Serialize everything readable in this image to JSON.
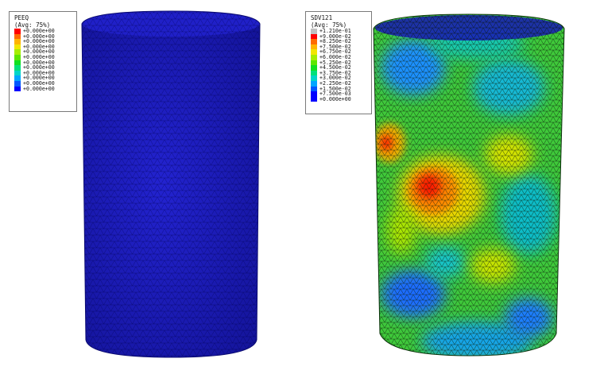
{
  "left_legend": {
    "title": "PEEQ",
    "subtitle": "(Avg: 75%)",
    "entries": [
      {
        "label": "+0.000e+00",
        "color": "#ff0000"
      },
      {
        "label": "+0.000e+00",
        "color": "#ff6a00"
      },
      {
        "label": "+0.000e+00",
        "color": "#ffb400"
      },
      {
        "label": "+0.000e+00",
        "color": "#f2e600"
      },
      {
        "label": "+0.000e+00",
        "color": "#a6ee00"
      },
      {
        "label": "+0.000e+00",
        "color": "#5ce600"
      },
      {
        "label": "+0.000e+00",
        "color": "#10e020"
      },
      {
        "label": "+0.000e+00",
        "color": "#00e07a"
      },
      {
        "label": "+0.000e+00",
        "color": "#00d6c8"
      },
      {
        "label": "+0.000e+00",
        "color": "#00a6ff"
      },
      {
        "label": "+0.000e+00",
        "color": "#0058ff"
      },
      {
        "label": "+0.000e+00",
        "color": "#0000ff"
      }
    ]
  },
  "right_legend": {
    "title": "SDV121",
    "subtitle": "(Avg: 75%)",
    "entries": [
      {
        "label": "+1.210e-01",
        "color": "#c0c0c0"
      },
      {
        "label": "+9.000e-02",
        "color": "#ff0000"
      },
      {
        "label": "+8.250e-02",
        "color": "#ff6a00"
      },
      {
        "label": "+7.500e-02",
        "color": "#ffb400"
      },
      {
        "label": "+6.750e-02",
        "color": "#f2e600"
      },
      {
        "label": "+6.000e-02",
        "color": "#a6ee00"
      },
      {
        "label": "+5.250e-02",
        "color": "#5ce600"
      },
      {
        "label": "+4.500e-02",
        "color": "#10e020"
      },
      {
        "label": "+3.750e-02",
        "color": "#00e07a"
      },
      {
        "label": "+3.000e-02",
        "color": "#00d6c8"
      },
      {
        "label": "+2.250e-02",
        "color": "#00a6ff"
      },
      {
        "label": "+1.500e-02",
        "color": "#0058ff"
      },
      {
        "label": "+7.500e-03",
        "color": "#0000ff"
      },
      {
        "label": "+0.000e+00",
        "color": "#0000ff"
      }
    ]
  },
  "colors": {
    "left_cylinder": "#1f1fc4",
    "right_base_green": "#3fc93a",
    "mesh_lines": "#0a1a0a"
  }
}
